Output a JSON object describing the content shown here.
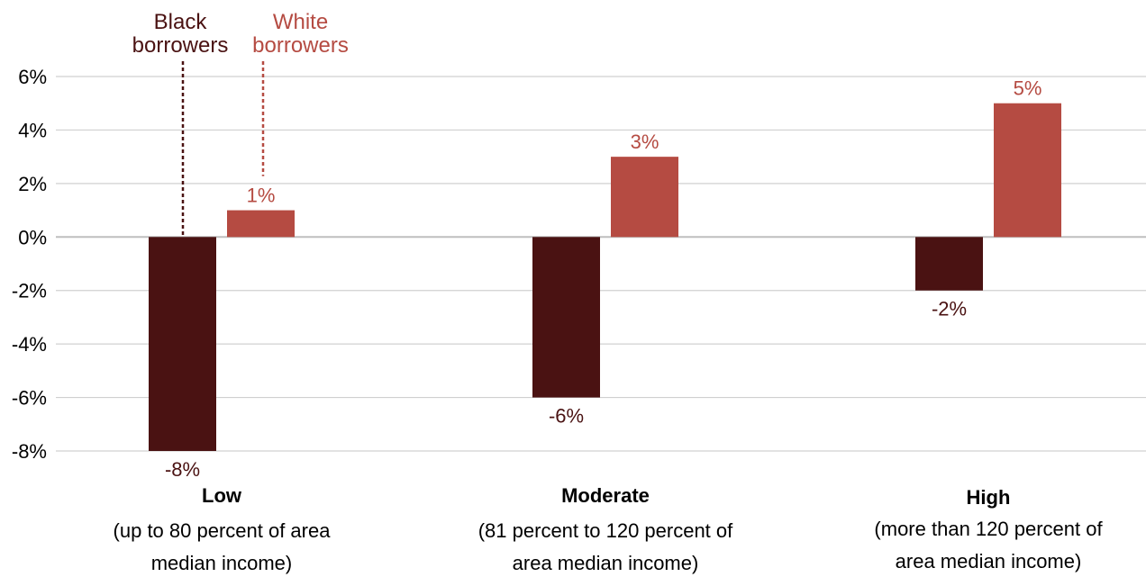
{
  "chart_data": {
    "type": "bar",
    "categories": [
      {
        "name": "Low",
        "description_lines": [
          "(up to 80 percent of area",
          "median income)"
        ]
      },
      {
        "name": "Moderate",
        "description_lines": [
          "(81 percent to 120 percent of",
          "area median income)"
        ]
      },
      {
        "name": "High",
        "description_lines": [
          "(more than 120 percent of",
          "area median income)"
        ]
      }
    ],
    "series": [
      {
        "name": "Black borrowers",
        "legend_lines": [
          "Black",
          "borrowers"
        ],
        "color": "#4a1212",
        "values": [
          -8,
          -6,
          -2
        ],
        "labels": [
          "-8%",
          "-6%",
          "-2%"
        ]
      },
      {
        "name": "White borrowers",
        "legend_lines": [
          "White",
          "borrowers"
        ],
        "color": "#b54b42",
        "values": [
          1,
          3,
          5
        ],
        "labels": [
          "1%",
          "3%",
          "5%"
        ]
      }
    ],
    "yticks": [
      6,
      4,
      2,
      0,
      -2,
      -4,
      -6,
      -8
    ],
    "ytick_labels": [
      "6%",
      "4%",
      "2%",
      "0%",
      "-2%",
      "-4%",
      "-6%",
      "-8%"
    ],
    "ylim": [
      -8,
      6
    ],
    "grid": true,
    "legend_placement": "top-left, annotated with dotted leader lines to first category bars"
  }
}
